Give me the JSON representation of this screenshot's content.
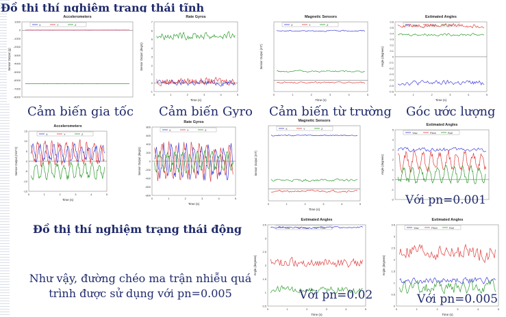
{
  "title_static": "Đồ thị thí nghiệm trạng thái tĩnh",
  "title_dynamic": "Đồ thị thí nghiệm trạng thái động",
  "captions": {
    "accel": "Cảm biến gia tốc",
    "gyro": "Cảm biến Gyro",
    "mag": "Cảm biến từ trường",
    "angle": "Góc ước lượng"
  },
  "conclusion_line1": "Như vậy, đường chéo ma trận nhiễu  quá",
  "conclusion_line2": "trình được sử dụng với pn=0.005",
  "overlays": {
    "pn1": "Với pn=0.001",
    "pn2": "Với pn=0.02",
    "pn3": "Với pn=0.005"
  },
  "colors": {
    "x": "#3b3bd9",
    "y": "#e03a3a",
    "z": "#2e9a2e"
  },
  "chart_data": [
    {
      "id": "p1",
      "type": "line",
      "title": "Accelerometers",
      "ylabel": "Sensor Output (g)",
      "xlabel": "",
      "legend": [
        "X",
        "Y",
        "Z"
      ],
      "ylim": [
        -8000,
        1000
      ],
      "yticks": [
        1000,
        0,
        -1000,
        -2000,
        -3000,
        -4000,
        -5000,
        -6000,
        -7000,
        -8000
      ],
      "xticks": [],
      "xlim": [
        0,
        5
      ],
      "series": [
        {
          "name": "X",
          "level": 0,
          "amp": 30,
          "mode": "flat"
        },
        {
          "name": "Y",
          "level": 20,
          "amp": 30,
          "mode": "flat"
        },
        {
          "name": "Z",
          "level": -6400,
          "amp": 60,
          "mode": "flat"
        }
      ]
    },
    {
      "id": "p2",
      "type": "line",
      "title": "Rate Gyros",
      "ylabel": "Sensor Output (deg/s)",
      "xlabel": "Time (s)",
      "legend": [],
      "ylim": [
        -1,
        7
      ],
      "yticks": [
        7,
        6,
        5,
        4,
        3,
        2,
        1,
        0,
        -1
      ],
      "xticks": [
        0,
        1,
        2,
        3,
        4,
        5
      ],
      "xlim": [
        0,
        5
      ],
      "series": [
        {
          "name": "X",
          "level": 0,
          "amp": 0.5,
          "mode": "noise"
        },
        {
          "name": "Y",
          "level": 0.2,
          "amp": 0.6,
          "mode": "noise"
        },
        {
          "name": "Z",
          "level": 5.4,
          "amp": 0.6,
          "mode": "noise"
        }
      ]
    },
    {
      "id": "p3",
      "type": "line",
      "title": "Magnetic Sensors",
      "ylabel": "Sensor Output (mT)",
      "xlabel": "Time (s)",
      "legend": [
        "X",
        "Y",
        "Z"
      ],
      "ylim": [
        -0.5,
        2.6
      ],
      "yticks": [],
      "xticks": [
        0,
        1,
        2,
        3,
        4,
        5
      ],
      "xlim": [
        0,
        5
      ],
      "series": [
        {
          "name": "X",
          "level": 2.2,
          "amp": 0.04,
          "mode": "noise"
        },
        {
          "name": "Y",
          "level": -0.1,
          "amp": 0.05,
          "mode": "noise"
        },
        {
          "name": "Z",
          "level": 0.4,
          "amp": 0.05,
          "mode": "noise"
        }
      ]
    },
    {
      "id": "p4",
      "type": "line",
      "title": "Estimated Angles",
      "ylabel": "Angle (degrees)",
      "xlabel": "Time (s)",
      "legend": [
        "Yaw",
        "Pitch",
        "Roll"
      ],
      "ylim": [
        -0.6,
        0.6
      ],
      "yticks": [
        0.6,
        0.5,
        0.4,
        0.3,
        0.2,
        0.1,
        0,
        -0.1,
        -0.2,
        -0.3,
        -0.4,
        -0.5,
        -0.6
      ],
      "xticks": [
        0,
        1,
        2,
        3,
        4,
        5
      ],
      "xlim": [
        0,
        5
      ],
      "series": [
        {
          "name": "Yaw",
          "level": -0.45,
          "amp": 0.06,
          "mode": "noise"
        },
        {
          "name": "Pitch",
          "level": 0.54,
          "amp": 0.05,
          "mode": "noise"
        },
        {
          "name": "Roll",
          "level": 0.38,
          "amp": 0.03,
          "mode": "noise"
        }
      ]
    },
    {
      "id": "p5",
      "type": "line",
      "title": "Accelerometers",
      "ylabel": "Sensor Output (m/s^2)",
      "xlabel": "Time (s)",
      "legend": [
        "X",
        "Y",
        "Z"
      ],
      "ylim": [
        -15,
        15
      ],
      "yticks": [
        15,
        10,
        5,
        0,
        -5,
        -10,
        -15
      ],
      "xticks": [
        0,
        1,
        2,
        3,
        4,
        5
      ],
      "xlim": [
        0,
        5
      ],
      "series": [
        {
          "name": "X",
          "level": 4,
          "amp": 5,
          "mode": "osc"
        },
        {
          "name": "Y",
          "level": 4,
          "amp": 7,
          "mode": "osc"
        },
        {
          "name": "Z",
          "level": -5,
          "amp": 5,
          "mode": "osc"
        }
      ]
    },
    {
      "id": "p6",
      "type": "line",
      "title": "Rate Gyros",
      "ylabel": "Sensor Output (deg/s)",
      "xlabel": "Time (s)",
      "legend": [
        "X",
        "Y",
        "Z"
      ],
      "ylim": [
        -800,
        800
      ],
      "yticks": [
        800,
        600,
        400,
        200,
        0,
        -200,
        -400,
        -600,
        -800
      ],
      "xticks": [
        0,
        1,
        2,
        3,
        4,
        5
      ],
      "xlim": [
        0,
        5
      ],
      "series": [
        {
          "name": "X",
          "level": 0,
          "amp": 450,
          "mode": "osc"
        },
        {
          "name": "Y",
          "level": 0,
          "amp": 500,
          "mode": "osc"
        },
        {
          "name": "Z",
          "level": 0,
          "amp": 300,
          "mode": "osc"
        }
      ]
    },
    {
      "id": "p7",
      "type": "line",
      "title": "Magnetic Sensors",
      "ylabel": "Sensor Output (mT)",
      "xlabel": "Time (s)",
      "legend": [
        "X",
        "Y",
        "Z"
      ],
      "ylim": [
        -0.5,
        2.6
      ],
      "yticks": [],
      "xticks": [
        0,
        1,
        2,
        3,
        4,
        5
      ],
      "xlim": [
        0,
        5
      ],
      "series": [
        {
          "name": "X",
          "level": 2.2,
          "amp": 0.04,
          "mode": "noise"
        },
        {
          "name": "Y",
          "level": -0.1,
          "amp": 0.06,
          "mode": "noise"
        },
        {
          "name": "Z",
          "level": 0.35,
          "amp": 0.07,
          "mode": "noise"
        }
      ]
    },
    {
      "id": "p8",
      "type": "line",
      "title": "Estimated Angles",
      "ylabel": "Angle (degrees)",
      "xlabel": "",
      "legend": [
        "Yaw",
        "Pitch",
        "Roll"
      ],
      "ylim": [
        -2,
        5
      ],
      "yticks": [
        5,
        4,
        3,
        2,
        1,
        0,
        -1,
        -2
      ],
      "xticks": [],
      "xlim": [
        0,
        5
      ],
      "series": [
        {
          "name": "Yaw",
          "level": 3.0,
          "amp": 0.3,
          "mode": "noise"
        },
        {
          "name": "Pitch",
          "level": 1.8,
          "amp": 1.2,
          "mode": "osc"
        },
        {
          "name": "Roll",
          "level": 0.5,
          "amp": 1.0,
          "mode": "osc"
        }
      ]
    },
    {
      "id": "p9",
      "type": "line",
      "title": "Estimated Angles",
      "ylabel": "Angle (degrees)",
      "xlabel": "Time (s)",
      "legend": [
        "Yaw",
        "Pitch",
        "Roll"
      ],
      "ylim": [
        0.5,
        3.5
      ],
      "yticks": [
        3.5,
        3,
        2.5,
        2,
        1.5,
        1,
        0.5
      ],
      "xticks": [
        0,
        1,
        2,
        3,
        4,
        5
      ],
      "xlim": [
        0,
        5
      ],
      "series": [
        {
          "name": "Yaw",
          "level": 3.4,
          "amp": 0.05,
          "mode": "noise"
        },
        {
          "name": "Pitch",
          "level": 2.1,
          "amp": 0.25,
          "mode": "noise"
        },
        {
          "name": "Roll",
          "level": 1.1,
          "amp": 0.2,
          "mode": "noise"
        }
      ]
    },
    {
      "id": "p10",
      "type": "line",
      "title": "Estimated Angles",
      "ylabel": "Angle (degrees)",
      "xlabel": "Time (s)",
      "legend": [
        "Yaw",
        "Pitch",
        "Roll"
      ],
      "ylim": [
        0,
        3.5
      ],
      "yticks": [
        3.5,
        3,
        2.5,
        2,
        1.5,
        1,
        0.5,
        0
      ],
      "xticks": [
        0,
        1,
        2,
        3,
        4,
        5
      ],
      "xlim": [
        0,
        5
      ],
      "series": [
        {
          "name": "Yaw",
          "level": 1.1,
          "amp": 0.2,
          "mode": "noise"
        },
        {
          "name": "Pitch",
          "level": 2.3,
          "amp": 0.5,
          "mode": "noise"
        },
        {
          "name": "Roll",
          "level": 0.8,
          "amp": 0.4,
          "mode": "noise"
        }
      ]
    }
  ]
}
